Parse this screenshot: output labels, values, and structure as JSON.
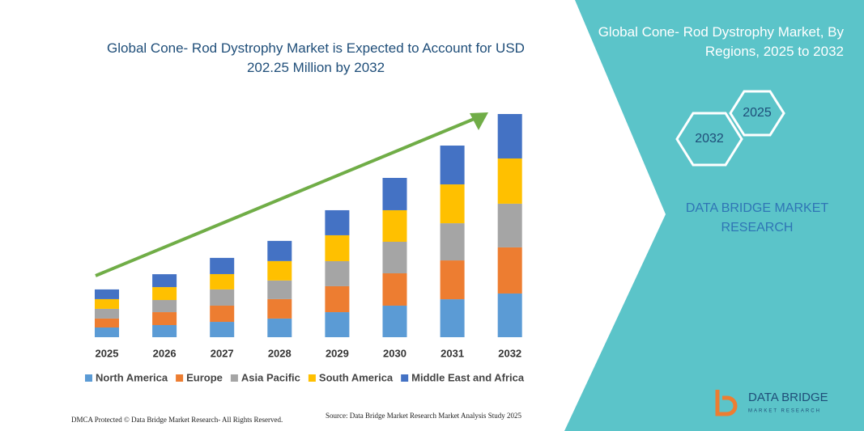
{
  "chart_data": {
    "type": "stacked_bar",
    "title": "Global Cone- Rod Dystrophy Market is Expected to Account for USD 202.25 Million by 2032",
    "categories": [
      "2025",
      "2026",
      "2027",
      "2028",
      "2029",
      "2030",
      "2031",
      "2032"
    ],
    "series": [
      {
        "name": "North America",
        "color": "#5b9bd5",
        "values": [
          8.8,
          11,
          13.9,
          16.9,
          22.7,
          28.6,
          34.4,
          39.6
        ]
      },
      {
        "name": "Europe",
        "color": "#ed7d31",
        "values": [
          8.1,
          11.7,
          14.7,
          17.6,
          23.5,
          29.3,
          35.2,
          41.8
        ]
      },
      {
        "name": "Asia Pacific",
        "color": "#a5a5a5",
        "values": [
          8.8,
          11,
          14.7,
          16.9,
          22.7,
          28.6,
          33.7,
          39.6
        ]
      },
      {
        "name": "South America",
        "color": "#ffc000",
        "values": [
          8.8,
          11.7,
          13.9,
          17.6,
          23.5,
          28.6,
          35.2,
          41
        ]
      },
      {
        "name": "Middle East and Africa",
        "color": "#4472c4",
        "values": [
          8.8,
          11.7,
          14.7,
          18.3,
          22.7,
          29.3,
          35.2,
          40.3
        ]
      }
    ],
    "legend": "bottom"
  },
  "panel": {
    "title": "Global Cone- Rod Dystrophy Market, By Regions, 2025 to 2032",
    "hex_small": "2025",
    "hex_large": "2032",
    "brand": "DATA BRIDGE MARKET RESEARCH"
  },
  "logo": {
    "name": "DATA BRIDGE",
    "sub": "MARKET RESEARCH"
  },
  "footer": {
    "left": "DMCA Protected © Data Bridge Market Research- All Rights Reserved.",
    "right": "Source: Data Bridge Market Research Market Analysis Study 2025"
  }
}
